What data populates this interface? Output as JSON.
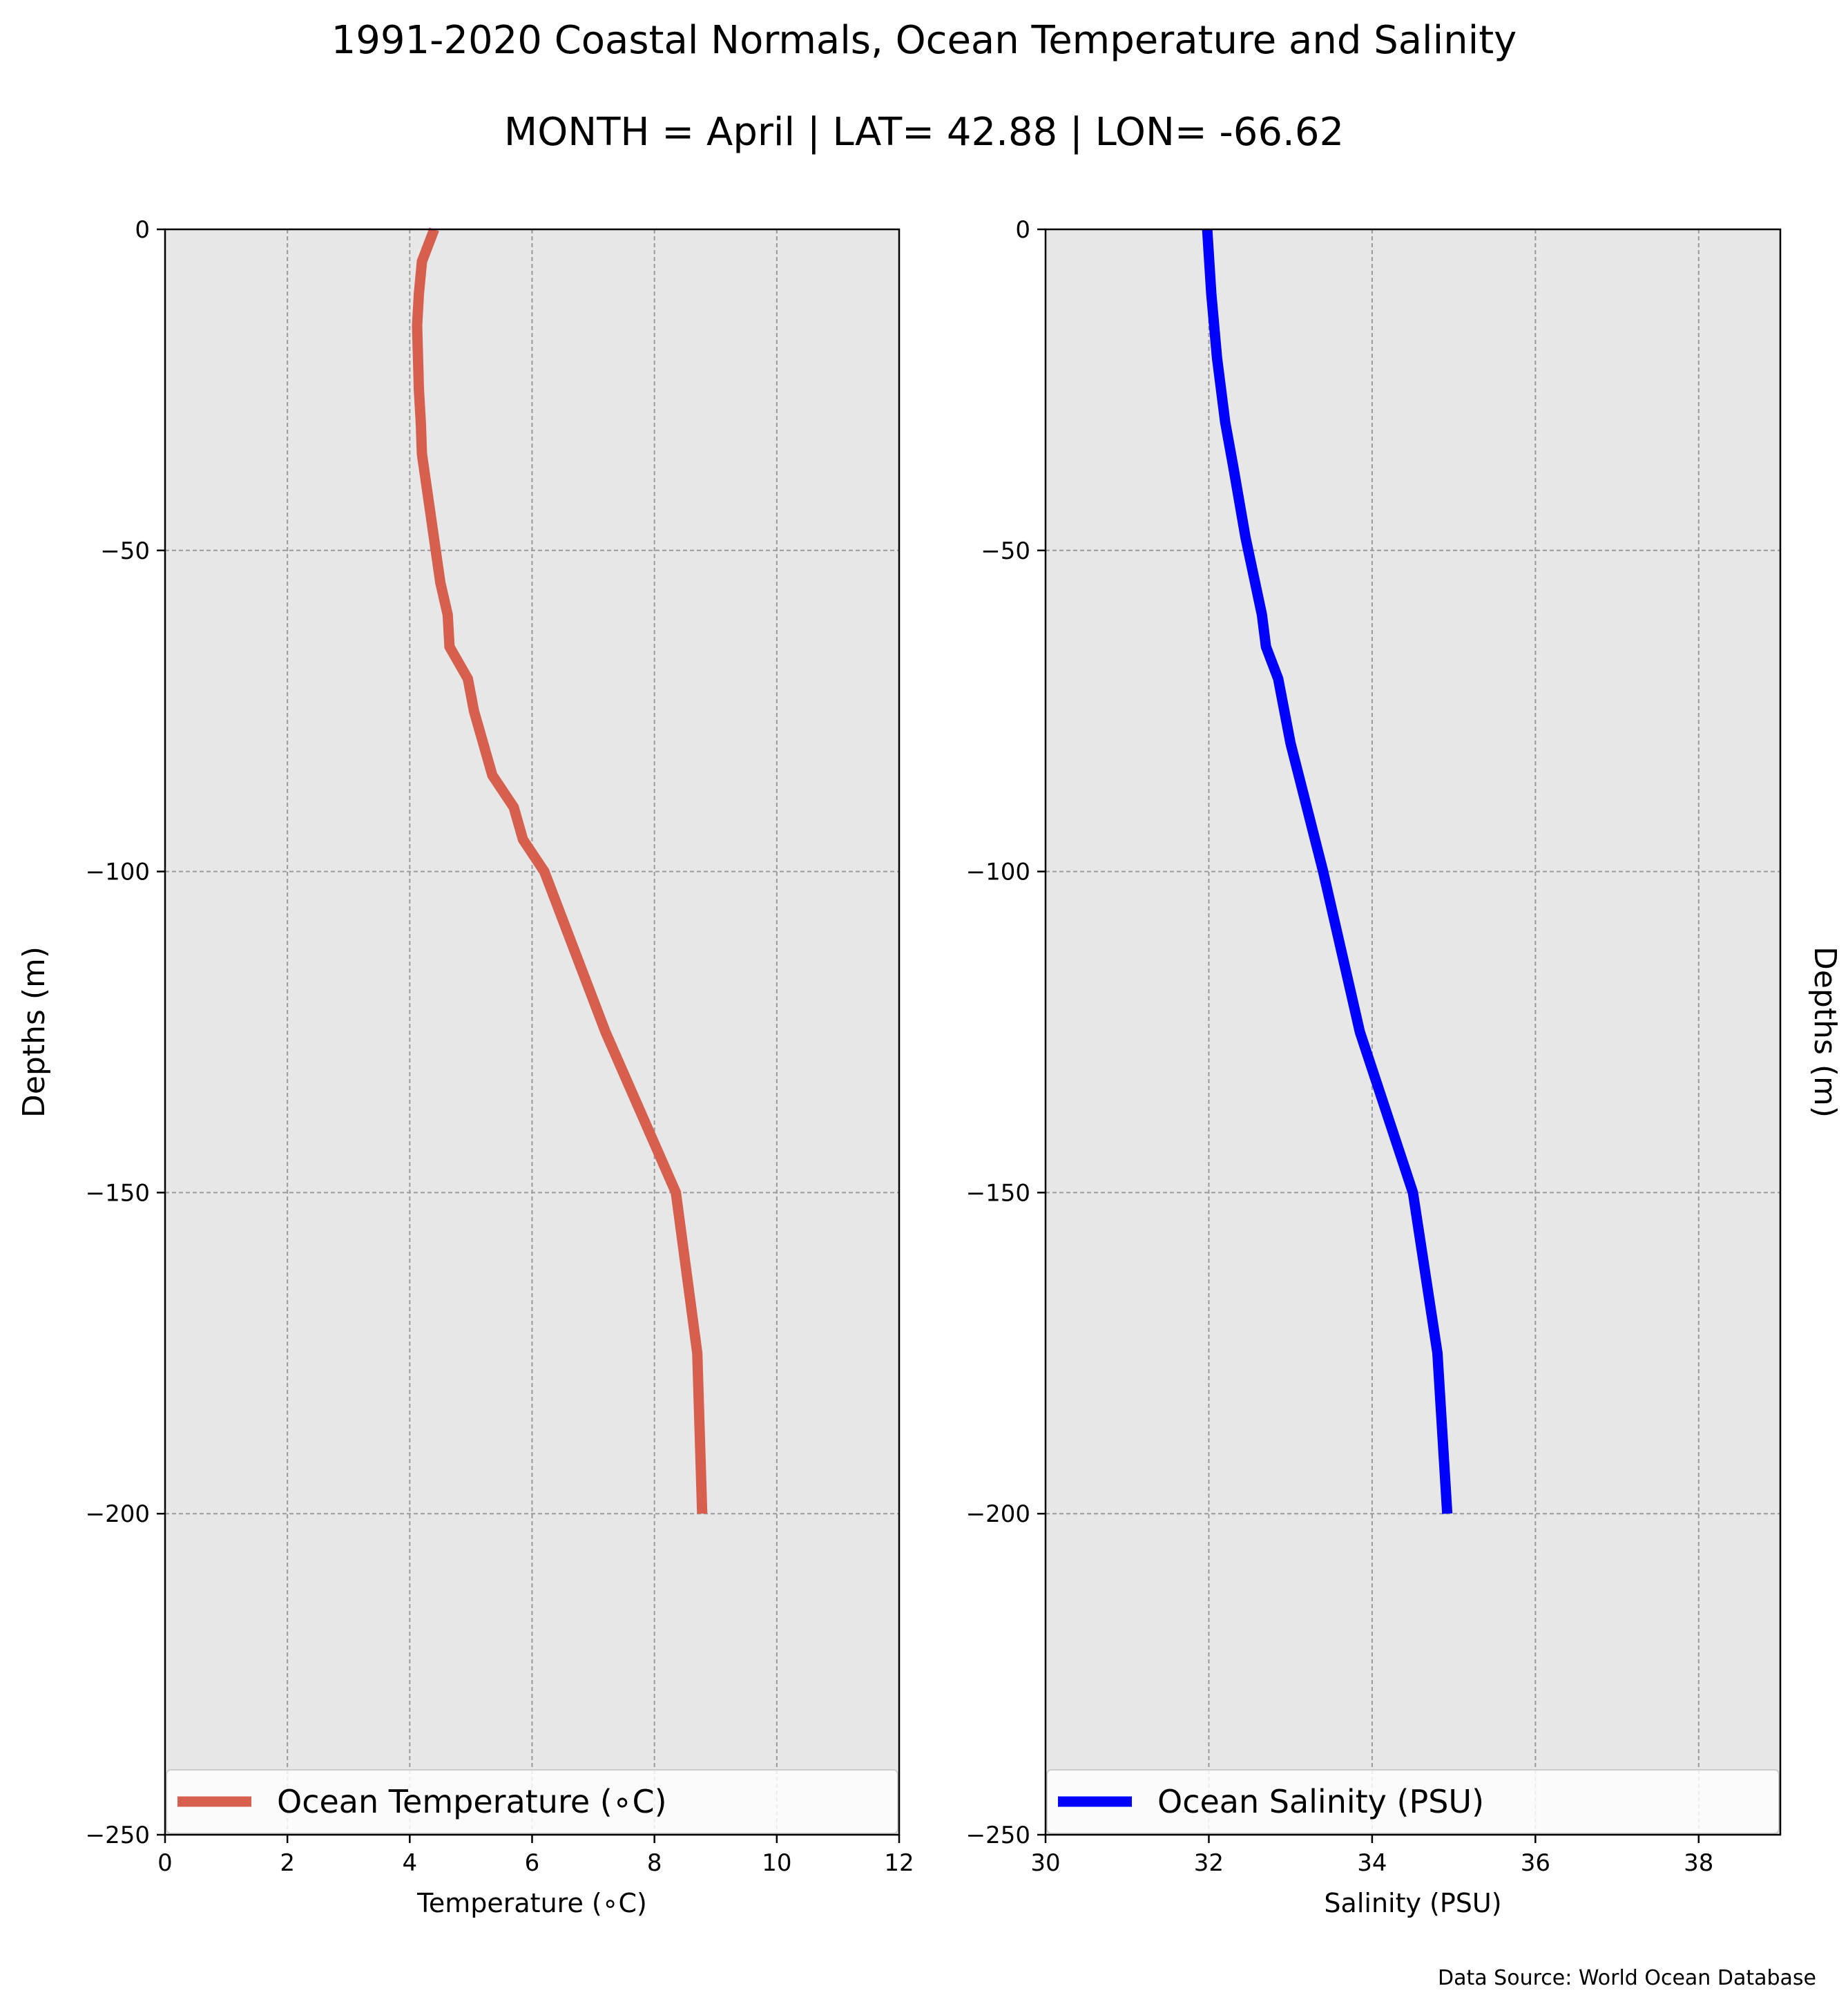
{
  "title": "1991-2020 Coastal Normals, Ocean Temperature and Salinity",
  "subtitle": "MONTH = April | LAT= 42.88 | LON= -66.62",
  "source": "Data Source: World Ocean Database",
  "chart_data": [
    {
      "type": "line",
      "xlabel": "Temperature (∘C)",
      "ylabel": "Depths (m)",
      "xlim": [
        0,
        12
      ],
      "ylim": [
        -250,
        0
      ],
      "xticks": [
        0,
        2,
        4,
        6,
        8,
        10,
        12
      ],
      "xtick_labels": [
        "0",
        "2",
        "4",
        "6",
        "8",
        "10",
        "12"
      ],
      "yticks": [
        0,
        -50,
        -100,
        -150,
        -200,
        -250
      ],
      "ytick_labels": [
        "0",
        "−50",
        "−100",
        "−150",
        "−200",
        "−250"
      ],
      "grid": true,
      "background": "#e7e7e7",
      "legend_position": "bottom",
      "series": [
        {
          "name": "Ocean Temperature (∘C)",
          "color": "#d6604d",
          "x": [
            4.4,
            4.2,
            4.15,
            4.12,
            4.15,
            4.18,
            4.2,
            4.35,
            4.5,
            4.62,
            4.65,
            4.95,
            5.05,
            5.35,
            5.7,
            5.85,
            6.2,
            7.2,
            8.35,
            8.7,
            8.78
          ],
          "y": [
            0,
            -5,
            -10,
            -15,
            -25,
            -30,
            -35,
            -45,
            -55,
            -60,
            -65,
            -70,
            -75,
            -85,
            -90,
            -95,
            -100,
            -125,
            -150,
            -175,
            -200
          ]
        }
      ]
    },
    {
      "type": "line",
      "xlabel": "Salinity (PSU)",
      "ylabel": "Depths (m)",
      "xlim": [
        30,
        39
      ],
      "ylim": [
        -250,
        0
      ],
      "xticks": [
        30,
        32,
        34,
        36,
        38
      ],
      "xtick_labels": [
        "30",
        "32",
        "34",
        "36",
        "38"
      ],
      "yticks": [
        0,
        -50,
        -100,
        -150,
        -200,
        -250
      ],
      "ytick_labels": [
        "0",
        "−50",
        "−100",
        "−150",
        "−200",
        "−250"
      ],
      "grid": true,
      "background": "#e7e7e7",
      "legend_position": "bottom",
      "series": [
        {
          "name": "Ocean Salinity (PSU)",
          "color": "#0000ff",
          "x": [
            31.98,
            32.03,
            32.1,
            32.2,
            32.3,
            32.45,
            32.65,
            32.7,
            32.85,
            33.0,
            33.4,
            33.85,
            34.5,
            34.8,
            34.92
          ],
          "y": [
            0,
            -10,
            -20,
            -30,
            -37,
            -48,
            -60,
            -65,
            -70,
            -80,
            -100,
            -125,
            -150,
            -175,
            -200
          ]
        }
      ]
    }
  ]
}
